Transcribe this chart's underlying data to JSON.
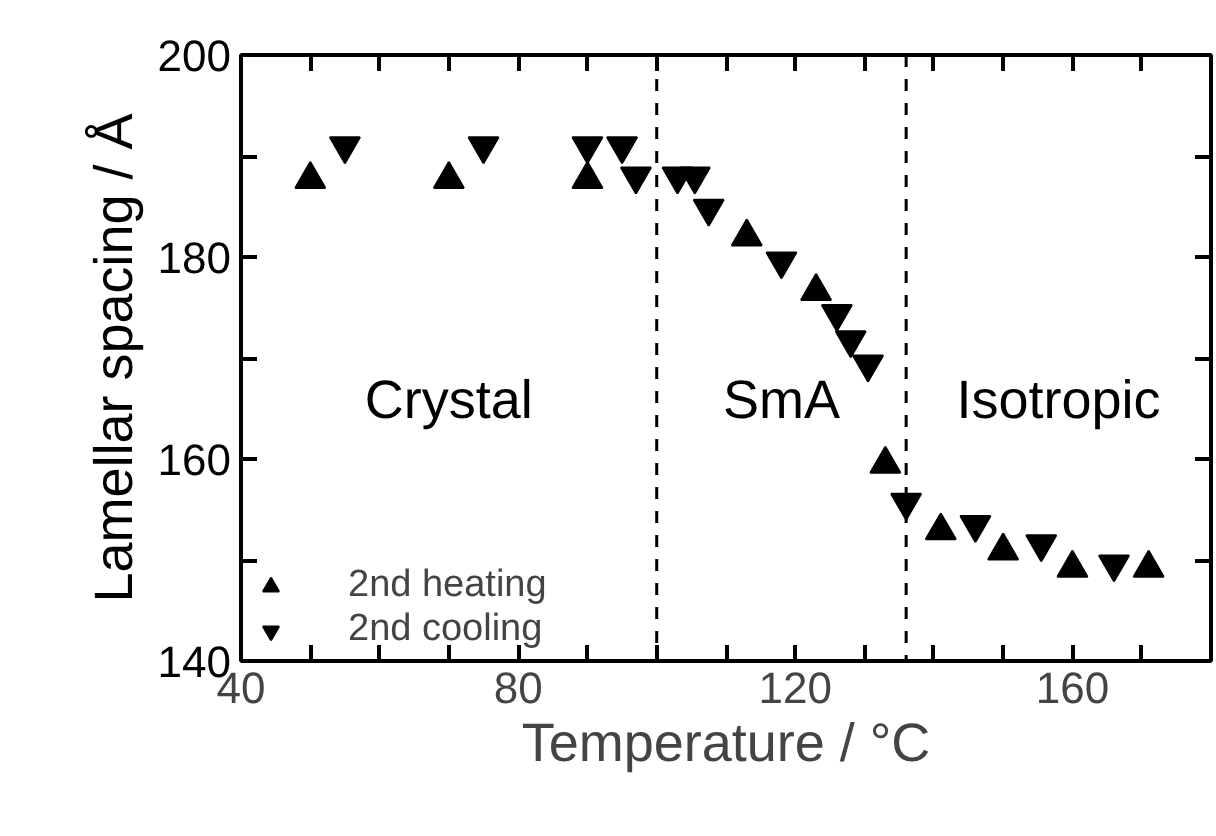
{
  "chart_data": {
    "type": "scatter",
    "xlabel": "Temperature / °C",
    "ylabel": "Lamellar spacing / Å",
    "xlim": [
      40,
      180
    ],
    "ylim": [
      140,
      200
    ],
    "xticks": [
      40,
      {
        "value": 50,
        "label": null
      },
      {
        "value": 60,
        "label": null
      },
      {
        "value": 70,
        "label": null
      },
      80,
      {
        "value": 90,
        "label": null
      },
      {
        "value": 100,
        "label": null
      },
      {
        "value": 110,
        "label": null
      },
      120,
      {
        "value": 130,
        "label": null
      },
      {
        "value": 140,
        "label": null
      },
      {
        "value": 150,
        "label": null
      },
      160,
      {
        "value": 170,
        "label": null
      },
      {
        "value": 180,
        "label": null
      }
    ],
    "yticks": [
      140,
      {
        "value": 150,
        "label": null
      },
      160,
      {
        "value": 170,
        "label": null
      },
      180,
      {
        "value": 190,
        "label": null
      },
      200
    ],
    "grid": false,
    "legend": "bottom left",
    "series": [
      {
        "name": "2nd heating",
        "color": "#000000",
        "marker": "triangle",
        "x": [
          50,
          70,
          90,
          113,
          123,
          133,
          141,
          150,
          160,
          171
        ],
        "values": [
          187.7,
          187.7,
          187.7,
          182,
          176.6,
          159.5,
          152.9,
          150.9,
          149.2,
          149.2
        ]
      },
      {
        "name": "2nd cooling",
        "color": "#000000",
        "marker": "triangle_down",
        "x": [
          55,
          75,
          90,
          95,
          97,
          103,
          105.5,
          107.5,
          118,
          126,
          128,
          130.5,
          136,
          146,
          155.5,
          166
        ],
        "values": [
          191,
          191,
          191,
          191,
          188,
          188,
          188,
          184.8,
          179.6,
          174.4,
          171.8,
          169.4,
          155.7,
          153.5,
          151.6,
          149.6
        ]
      }
    ],
    "ref_lines": [
      {
        "axis": "x",
        "value": 100,
        "line_style": "dashed",
        "color": "#000000"
      },
      {
        "axis": "x",
        "value": 136,
        "line_style": "dashed",
        "color": "#000000"
      }
    ],
    "annotations": [
      "Crystal",
      "SmA",
      "Isotropic"
    ]
  }
}
